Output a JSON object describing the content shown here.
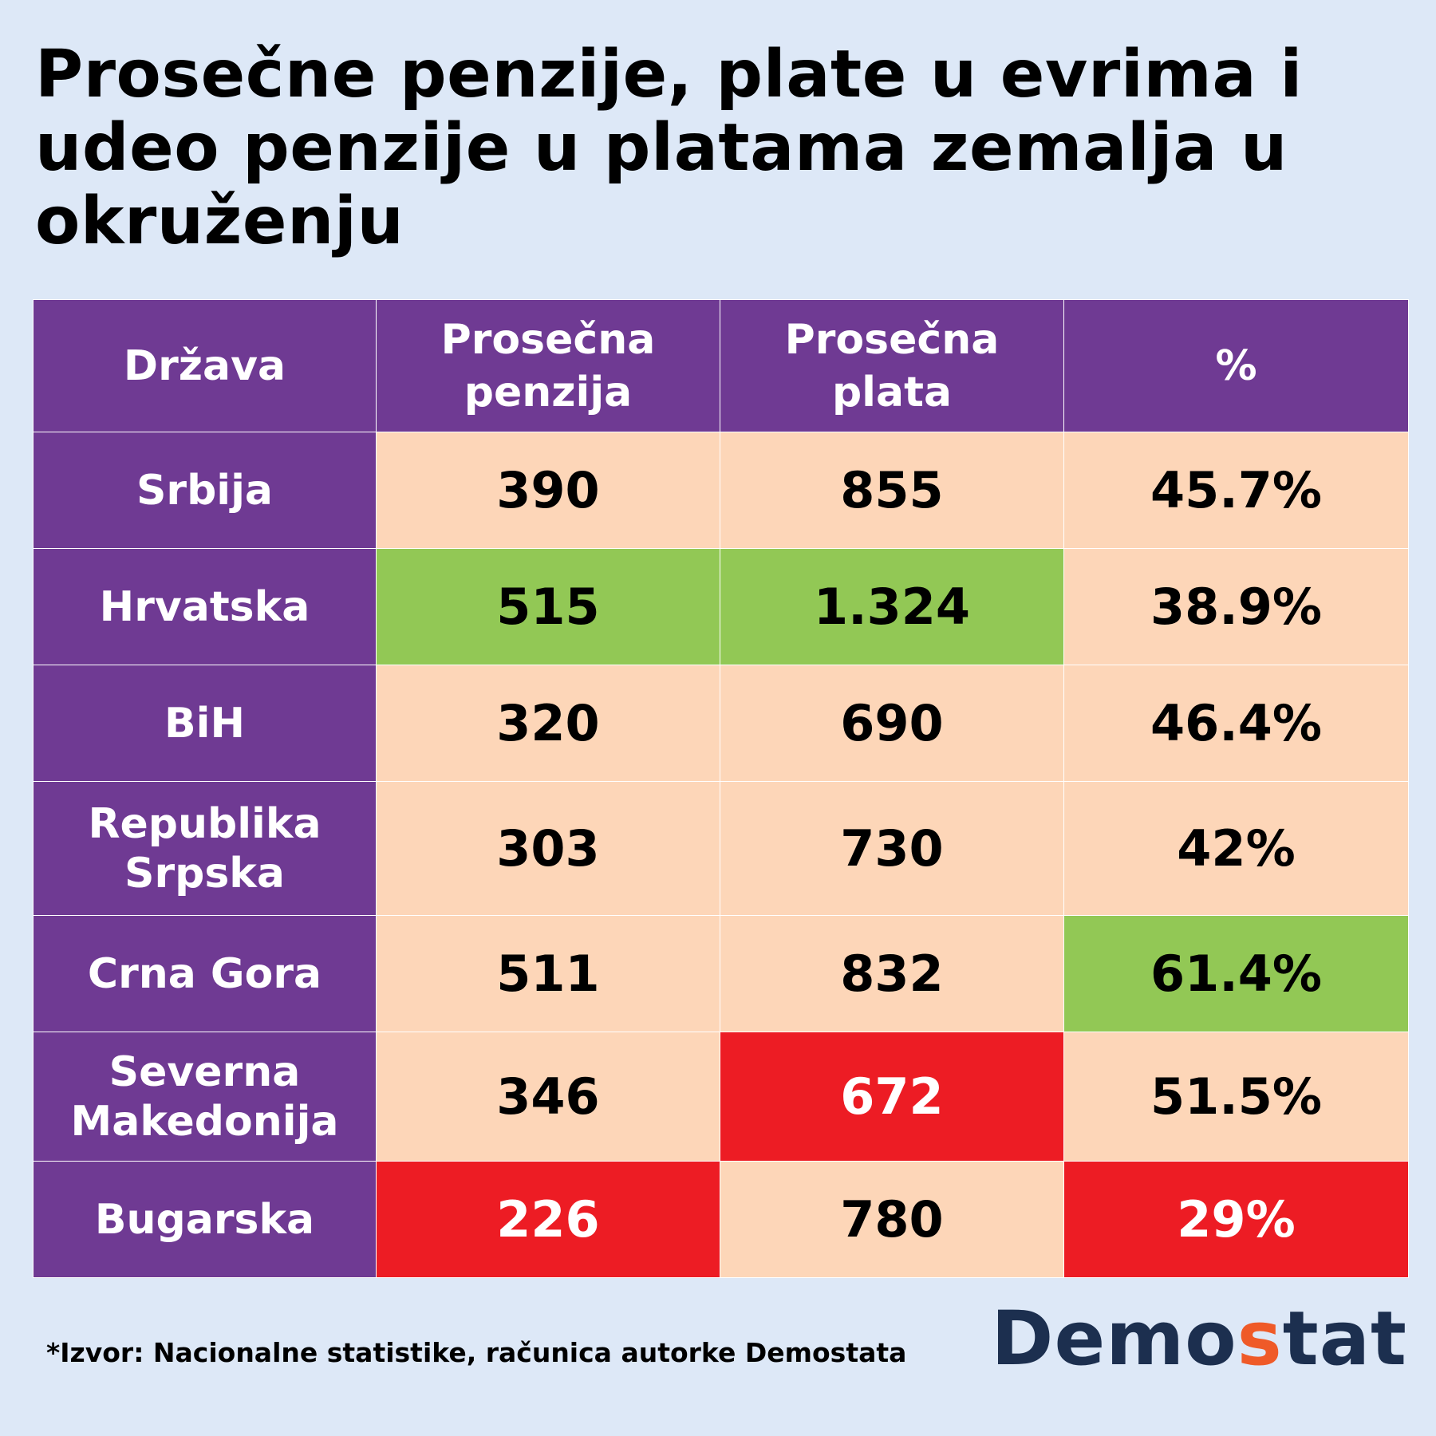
{
  "title": "Prosečne penzije, plate u evrima i udeo penzije u platama zemalja u okruženju",
  "colors": {
    "background": "#dde8f7",
    "header": "#6f3a93",
    "cell": "#fdd6b8",
    "highest": "#92c855",
    "lowest": "#ed1c24",
    "logo_dark": "#1c2f4f",
    "logo_accent": "#ef5a28"
  },
  "chart_data": {
    "type": "table",
    "columns": [
      {
        "key": "country",
        "label": [
          "Država"
        ]
      },
      {
        "key": "pension",
        "label": [
          "Prosečna",
          "penzija"
        ]
      },
      {
        "key": "salary",
        "label": [
          "Prosečna",
          "plata"
        ]
      },
      {
        "key": "percent",
        "label": [
          "%"
        ]
      }
    ],
    "rows": [
      {
        "country": [
          "Srbija"
        ],
        "pension": "390",
        "salary": "855",
        "percent": "45.7%",
        "highlight": {}
      },
      {
        "country": [
          "Hrvatska"
        ],
        "pension": "515",
        "salary": "1.324",
        "percent": "38.9%",
        "highlight": {
          "pension": "highest",
          "salary": "highest"
        }
      },
      {
        "country": [
          "BiH"
        ],
        "pension": "320",
        "salary": "690",
        "percent": "46.4%",
        "highlight": {}
      },
      {
        "country": [
          "Republika",
          "Srpska"
        ],
        "pension": "303",
        "salary": "730",
        "percent": "42%",
        "highlight": {}
      },
      {
        "country": [
          "Crna Gora"
        ],
        "pension": "511",
        "salary": "832",
        "percent": "61.4%",
        "highlight": {
          "percent": "highest"
        }
      },
      {
        "country": [
          "Severna",
          "Makedonija"
        ],
        "pension": "346",
        "salary": "672",
        "percent": "51.5%",
        "highlight": {
          "salary": "lowest"
        }
      },
      {
        "country": [
          "Bugarska"
        ],
        "pension": "226",
        "salary": "780",
        "percent": "29%",
        "highlight": {
          "pension": "lowest",
          "percent": "lowest"
        }
      }
    ]
  },
  "source": "*Izvor: Nacionalne statistike, računica autorke Demostata",
  "logo": {
    "part1": "Demo",
    "part2": "s",
    "part3": "tat"
  }
}
